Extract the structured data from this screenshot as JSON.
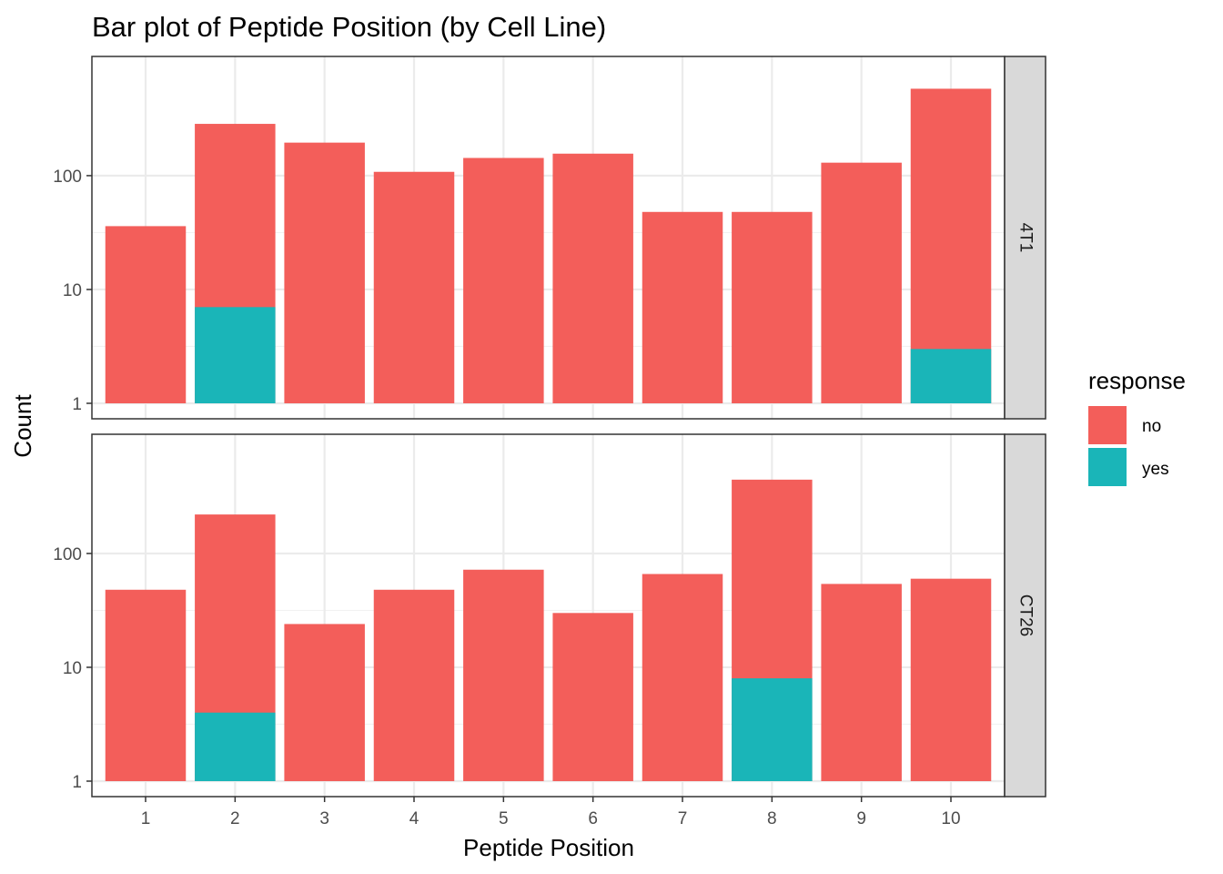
{
  "chart_data": {
    "type": "bar",
    "title": "Bar plot of Peptide Position (by Cell Line)",
    "xlabel": "Peptide Position",
    "ylabel": "Count",
    "y_scale": "log10",
    "ylim": [
      1,
      800
    ],
    "y_ticks": [
      1,
      10,
      100
    ],
    "y_tick_labels": [
      "1",
      "10",
      "100"
    ],
    "categories": [
      "1",
      "2",
      "3",
      "4",
      "5",
      "6",
      "7",
      "8",
      "9",
      "10"
    ],
    "stacked": true,
    "grid": true,
    "legend": {
      "title": "response",
      "position": "right",
      "entries": [
        {
          "label": "no",
          "color": "#F8766D"
        },
        {
          "label": "yes",
          "color": "#00BFC4"
        }
      ]
    },
    "colors": {
      "no": "#F35E5A",
      "yes": "#1AB5B8"
    },
    "facets": [
      {
        "label": "4T1",
        "series": [
          {
            "name": "no",
            "totals": [
              36,
              285,
              195,
              108,
              143,
              156,
              48,
              48,
              130,
              580
            ]
          },
          {
            "name": "yes",
            "values": [
              0,
              7,
              0,
              0,
              0,
              0,
              0,
              0,
              0,
              3
            ]
          }
        ]
      },
      {
        "label": "CT26",
        "series": [
          {
            "name": "no",
            "totals": [
              48,
              220,
              24,
              48,
              72,
              30,
              66,
              445,
              54,
              60
            ]
          },
          {
            "name": "yes",
            "values": [
              0,
              4,
              0,
              0,
              0,
              0,
              0,
              8,
              0,
              0
            ]
          }
        ]
      }
    ]
  }
}
